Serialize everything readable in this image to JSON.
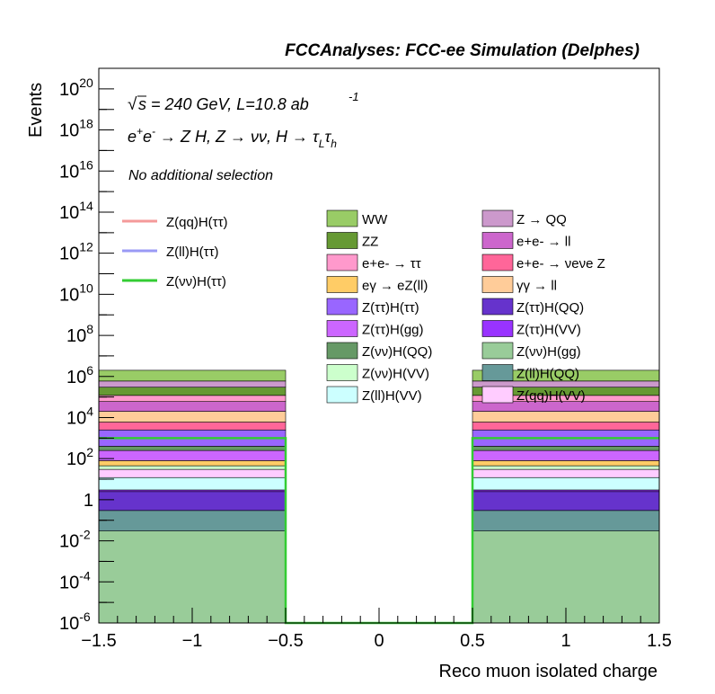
{
  "chart_data": {
    "type": "bar",
    "title": "FCCAnalyses: FCC-ee Simulation (Delphes)",
    "energy_label": "s = 240 GeV, L=10.8 ab",
    "energy_exp": "-1",
    "process_label": "e+e- → Z H, Z → νν, H → τLτh",
    "selection_label": "No additional selection",
    "xlabel": "Reco muon isolated charge",
    "ylabel": "Events",
    "xlim": [
      -1.5,
      1.5
    ],
    "ylim": [
      1e-06,
      1e+21
    ],
    "yscale": "log",
    "x_ticks": [
      "−1.5",
      "−1",
      "−0.5",
      "0",
      "0.5",
      "1",
      "1.5"
    ],
    "bins": [
      [
        -1.5,
        -0.5
      ],
      [
        -0.5,
        0.5
      ],
      [
        0.5,
        1.5
      ]
    ],
    "stack_order_bottom_to_top": [
      "Z(νν)H(gg)",
      "Z(ll)H(QQ)",
      "Z(ττ)H(QQ)",
      "Z(ττ)H(VV)",
      "Z(ll)H(VV)",
      "Z(qq)H(VV)",
      "Z(νν)H(VV)",
      "eγ → eZ(ll)",
      "Z(ττ)H(gg)",
      "Z(νν)H(QQ)",
      "Z(ττ)H(ττ)",
      "e+e- → νeνe Z",
      "γγ → ll",
      "e+e- → ll",
      "e+e- → ττ",
      "ZZ",
      "Z → QQ",
      "WW"
    ],
    "stack_cumulative_values": {
      "left": [
        0.03,
        0.3,
        2.5,
        3.0,
        12,
        30,
        45,
        80,
        250,
        400,
        2500,
        6000,
        20000,
        60000,
        120000,
        300000,
        600000,
        2000000
      ],
      "right": [
        0.03,
        0.3,
        2.5,
        3.0,
        12,
        30,
        45,
        80,
        250,
        400,
        2500,
        6000,
        20000,
        60000,
        120000,
        300000,
        600000,
        2000000
      ]
    },
    "legend_lines": [
      {
        "name": "Z(qq)H(ττ)",
        "color": "#f49a9a"
      },
      {
        "name": "Z(ll)H(ττ)",
        "color": "#9a9af5"
      },
      {
        "name": "Z(νν)H(ττ)",
        "color": "#33cc33"
      }
    ],
    "legend_fills_col1": [
      {
        "name": "WW",
        "color": "#99cc66"
      },
      {
        "name": "ZZ",
        "color": "#669933"
      },
      {
        "name": "e+e- → ττ",
        "color": "#ff99cc"
      },
      {
        "name": "eγ → eZ(ll)",
        "color": "#ffcc66"
      },
      {
        "name": "Z(ττ)H(ττ)",
        "color": "#9966ff"
      },
      {
        "name": "Z(ττ)H(gg)",
        "color": "#cc66ff"
      },
      {
        "name": "Z(νν)H(QQ)",
        "color": "#669966"
      },
      {
        "name": "Z(νν)H(VV)",
        "color": "#ccffcc"
      },
      {
        "name": "Z(ll)H(VV)",
        "color": "#ccffff"
      }
    ],
    "legend_fills_col2": [
      {
        "name": "Z → QQ",
        "color": "#cc99cc"
      },
      {
        "name": "e+e- → ll",
        "color": "#cc66cc"
      },
      {
        "name": "e+e- → νeνe Z",
        "color": "#ff6699"
      },
      {
        "name": "γγ → ll",
        "color": "#ffcc99"
      },
      {
        "name": "Z(ττ)H(QQ)",
        "color": "#6633cc"
      },
      {
        "name": "Z(ττ)H(VV)",
        "color": "#9933ff"
      },
      {
        "name": "Z(νν)H(gg)",
        "color": "#99cc99"
      },
      {
        "name": "Z(ll)H(QQ)",
        "color": "#669999"
      },
      {
        "name": "Z(qq)H(VV)",
        "color": "#ffccff"
      }
    ],
    "signal_line": {
      "name": "Z(νν)H(ττ)",
      "values": [
        1000,
        1e-06,
        1000
      ],
      "color": "#33cc33"
    },
    "grid": false,
    "legend_placement": "top-center"
  }
}
